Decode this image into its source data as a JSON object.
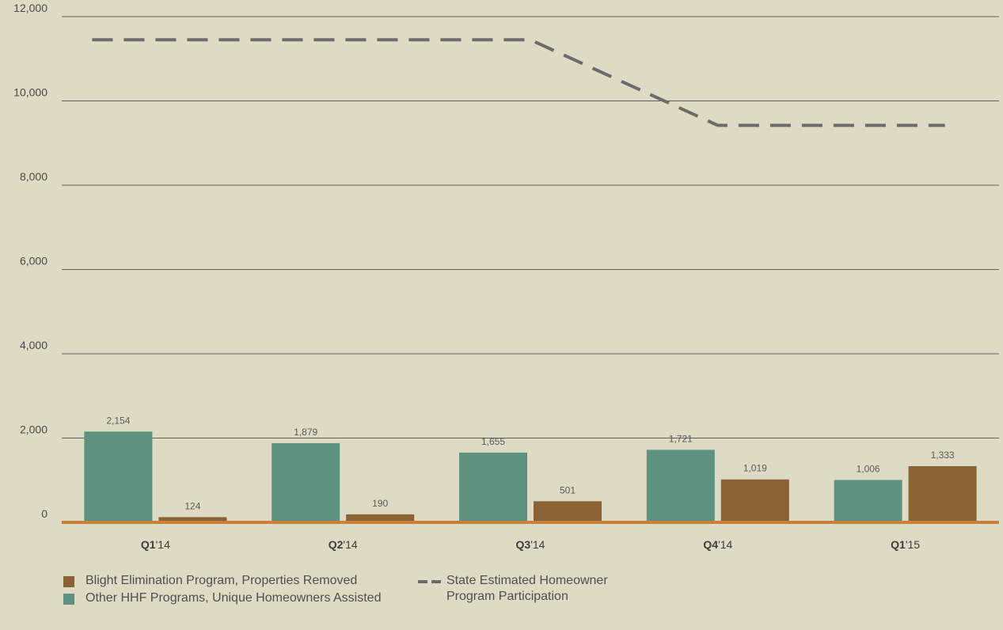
{
  "colors": {
    "background": "#dedbc5",
    "other_hhf": "#5e9180",
    "blight": "#8a6233",
    "baseline": "#c9803b",
    "state_line": "#6b6b6b",
    "grid": "#5f5f5f"
  },
  "chart_data": {
    "type": "bar",
    "categories": [
      "Q1'14",
      "Q2'14",
      "Q3'14",
      "Q4'14",
      "Q1'15"
    ],
    "category_labels": [
      {
        "bold": "Q1",
        "rest": "'14"
      },
      {
        "bold": "Q2",
        "rest": "'14"
      },
      {
        "bold": "Q3",
        "rest": "'14"
      },
      {
        "bold": "Q4",
        "rest": "'14"
      },
      {
        "bold": "Q1",
        "rest": "'15"
      }
    ],
    "series": [
      {
        "name": "Other HHF Programs, Unique Homeowners Assisted",
        "kind": "bar",
        "color": "#5e9180",
        "values": [
          2154,
          1879,
          1655,
          1721,
          1006
        ],
        "labels": [
          "2,154",
          "1,879",
          "1,655",
          "1,721",
          "1,006"
        ]
      },
      {
        "name": "Blight Elimination Program, Properties Removed",
        "kind": "bar",
        "color": "#8a6233",
        "values": [
          124,
          190,
          501,
          1019,
          1333
        ],
        "labels": [
          "124",
          "190",
          "501",
          "1,019",
          "1,333"
        ]
      },
      {
        "name": "State Estimated Homeowner Program Participation",
        "kind": "line-dashed",
        "color": "#6b6b6b",
        "values": [
          11450,
          11450,
          11450,
          9420,
          9420
        ]
      }
    ],
    "yticks": [
      {
        "value": 0,
        "label": "0"
      },
      {
        "value": 2000,
        "label": "2,000"
      },
      {
        "value": 4000,
        "label": "4,000"
      },
      {
        "value": 6000,
        "label": "6,000"
      },
      {
        "value": 8000,
        "label": "8,000"
      },
      {
        "value": 10000,
        "label": "10,000"
      },
      {
        "value": 12000,
        "label": "12,000"
      }
    ],
    "ylim": [
      0,
      12000
    ],
    "grid": true,
    "legend_position": "bottom-left"
  },
  "legend": {
    "blight": "Blight Elimination Program, Properties Removed",
    "other_hhf": "Other HHF Programs, Unique Homeowners Assisted",
    "state_line": "State Estimated Homeowner Program Participation"
  }
}
